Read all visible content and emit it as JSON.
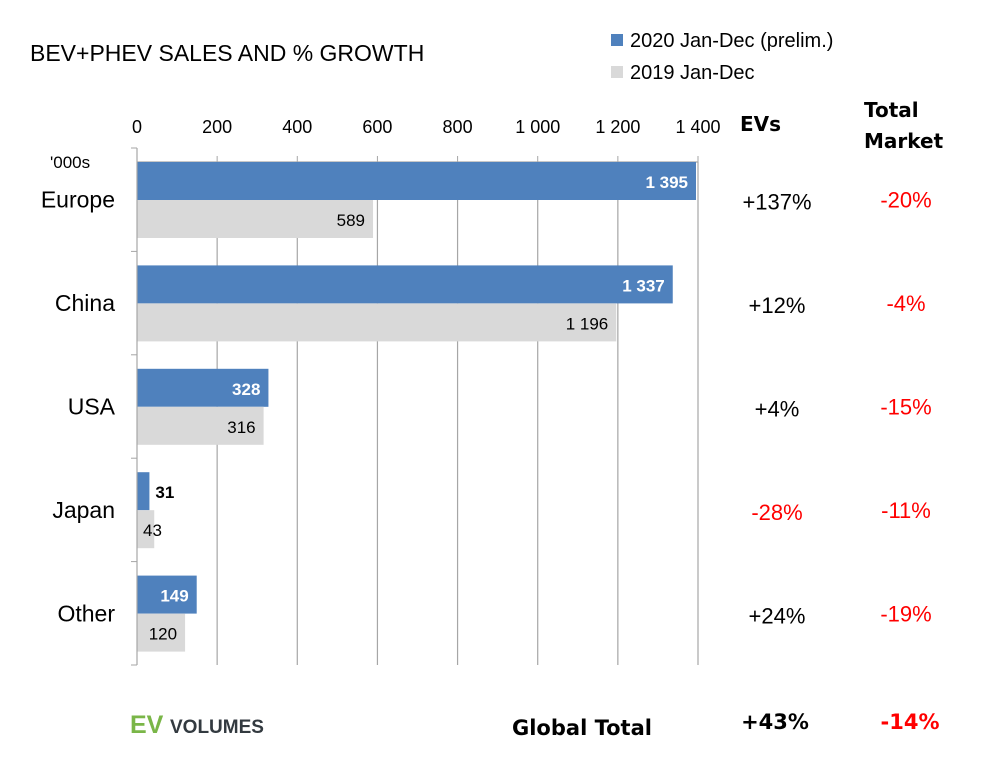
{
  "chart_data": {
    "type": "bar",
    "orientation": "horizontal",
    "title": "BEV+PHEV SALES AND % GROWTH",
    "unit_label": "'000s",
    "categories": [
      "Europe",
      "China",
      "USA",
      "Japan",
      "Other"
    ],
    "series": [
      {
        "name": "2020 Jan-Dec (prelim.)",
        "color": "#4f81bd",
        "values": [
          1395,
          1337,
          328,
          31,
          149
        ],
        "labels": [
          "1 395",
          "1 337",
          "328",
          "31",
          "149"
        ]
      },
      {
        "name": "2019 Jan-Dec",
        "color": "#d9d9d9",
        "values": [
          589,
          1196,
          316,
          43,
          120
        ],
        "labels": [
          "589",
          "1 196",
          "316",
          "43",
          "120"
        ]
      }
    ],
    "xlim": [
      0,
      1400
    ],
    "xticks": [
      0,
      200,
      400,
      600,
      800,
      1000,
      1200,
      1400
    ],
    "xtick_labels": [
      "0",
      "200",
      "400",
      "600",
      "800",
      "1 000",
      "1 200",
      "1 400"
    ],
    "grid": true,
    "legend": "top-right",
    "columns": {
      "evs_header": "EVs",
      "market_header_line1": "Total",
      "market_header_line2": "Market",
      "evs": [
        "+137%",
        "+12%",
        "+4%",
        "-28%",
        "+24%"
      ],
      "market": [
        "-20%",
        "-4%",
        "-15%",
        "-11%",
        "-19%"
      ],
      "positive_color": "#000000",
      "negative_color": "#ff0000"
    },
    "global": {
      "label": "Global Total",
      "evs": "+43%",
      "market": "-14%"
    }
  },
  "logo": {
    "part1": "EV",
    "part2": "VOLUMES",
    "green": "#7ab648",
    "dark": "#333a40"
  }
}
